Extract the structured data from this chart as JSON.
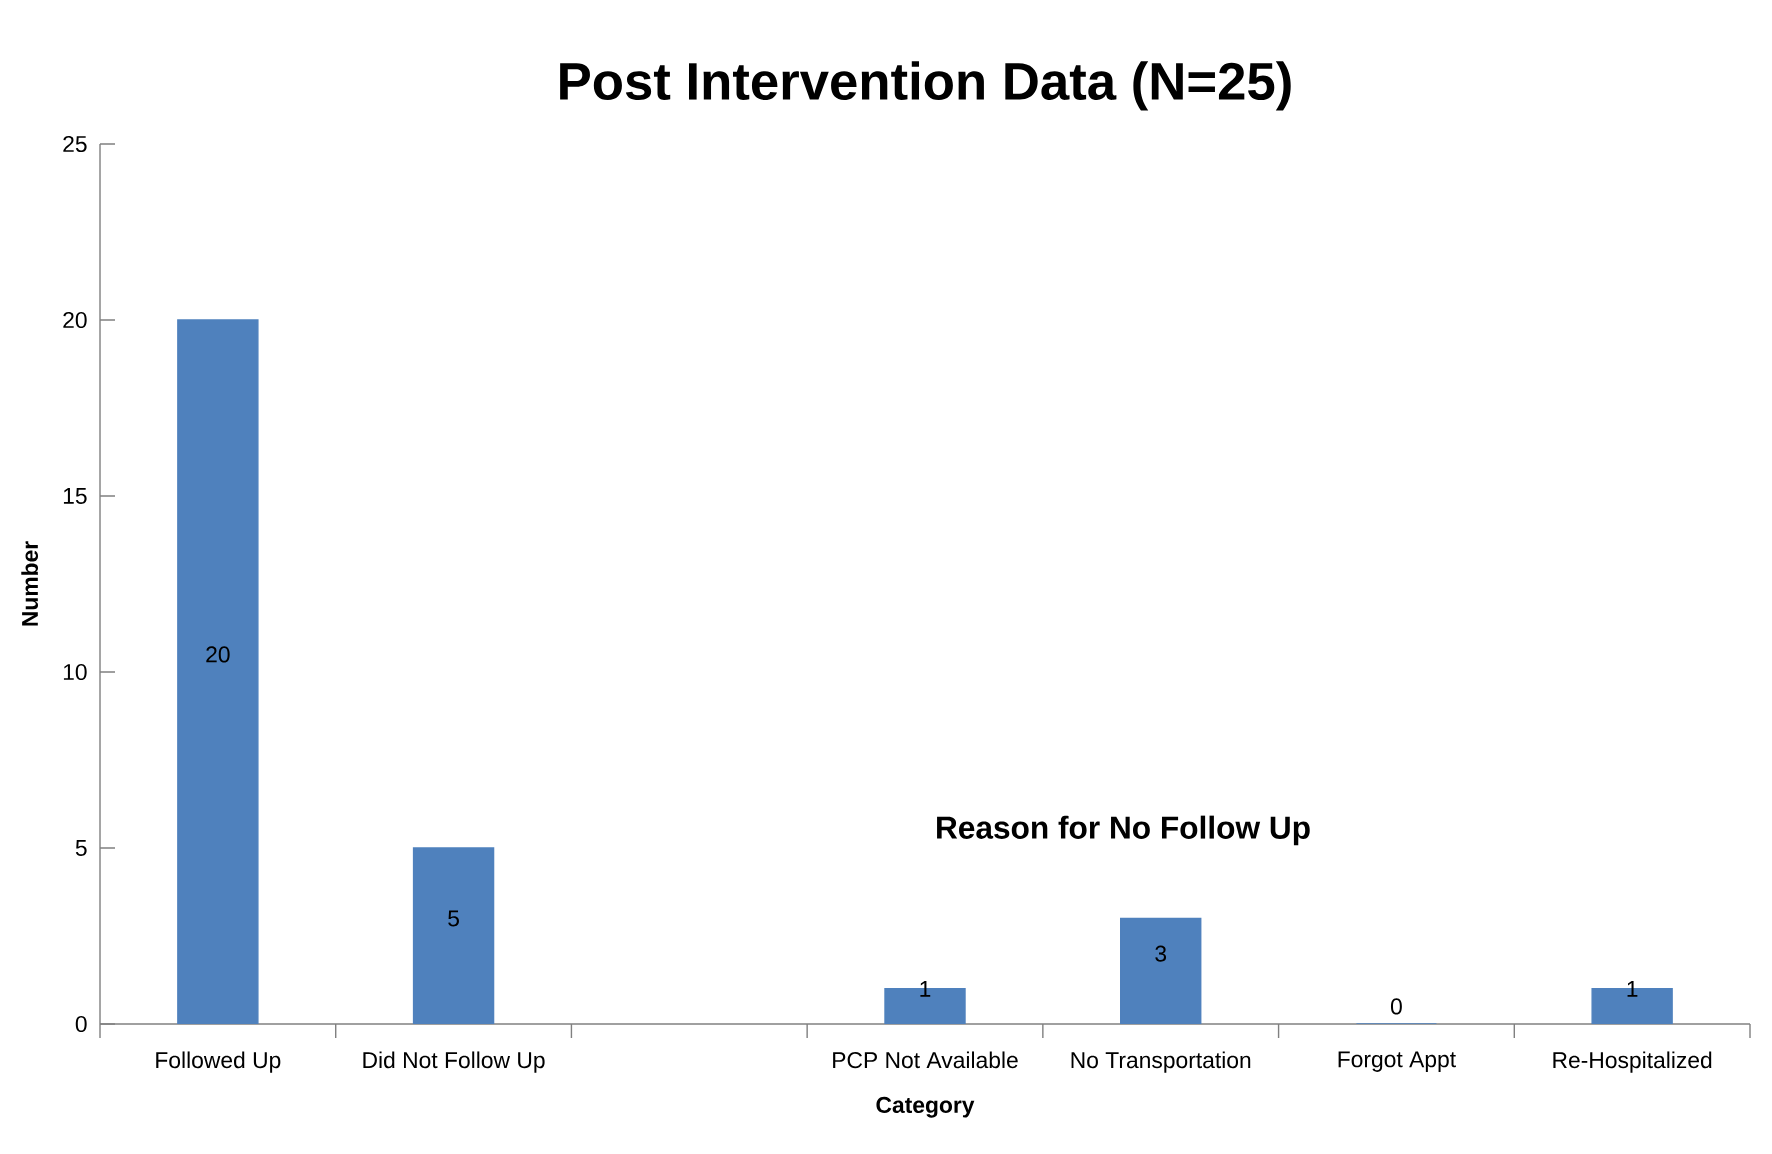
{
  "chart_data": {
    "type": "bar",
    "title": "Post Intervention Data (N=25)",
    "xlabel": "Category",
    "ylabel": "Number",
    "categories": [
      "Followed Up",
      "Did Not Follow Up",
      null,
      "PCP Not Available",
      "No Transportation",
      "Forgot Appt",
      "Re-Hospitalized"
    ],
    "values": [
      20,
      5,
      null,
      1,
      3,
      0,
      1
    ],
    "color": "#4f81bd",
    "ylim": [
      0,
      25
    ],
    "yticks": [
      0,
      5,
      10,
      15,
      20,
      25
    ],
    "data_labels": true,
    "annotations": [
      "Reason for No Follow Up"
    ]
  }
}
